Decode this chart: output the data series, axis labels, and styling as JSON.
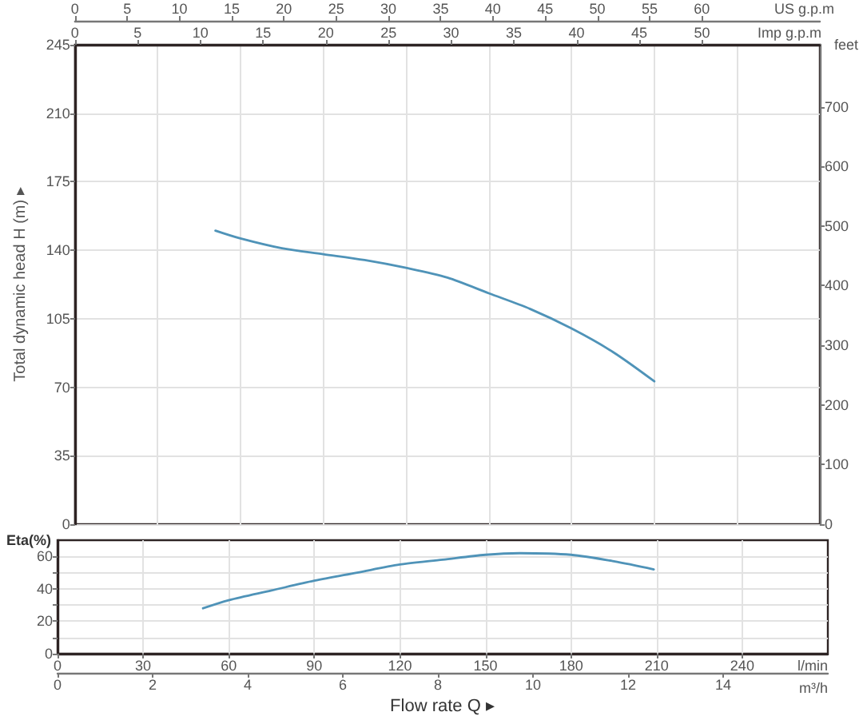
{
  "chart_data": [
    {
      "type": "line",
      "x": [
        11.2,
        13.2,
        16.5,
        19.8,
        23.1,
        26.4,
        29.7,
        33.0,
        36.3,
        39.6,
        42.9,
        46.2
      ],
      "values": [
        150,
        146,
        141,
        138,
        135,
        131,
        126,
        118,
        110,
        100,
        88,
        73
      ],
      "color": "#4f93b8",
      "xlim": [
        0,
        59.4
      ],
      "xticks": [
        0,
        5,
        10,
        15,
        20,
        25,
        30,
        35,
        40,
        45,
        50
      ],
      "xlabel": "Imp g.p.m",
      "x2lim": [
        0,
        71.3
      ],
      "x2ticks": [
        0,
        5,
        10,
        15,
        20,
        25,
        30,
        35,
        40,
        45,
        50,
        55,
        60
      ],
      "x2label": "US g.p.m",
      "ylim": [
        0,
        245
      ],
      "yticks": [
        0,
        35,
        70,
        105,
        140,
        175,
        210,
        245
      ],
      "ylabel": "Total dynamic head H (m) ▸",
      "y2lim": [
        0,
        804
      ],
      "y2ticks": [
        0,
        100,
        200,
        300,
        400,
        500,
        600,
        700
      ],
      "y2label": "feet",
      "grid": true,
      "marker": "none",
      "line_style": "solid"
    },
    {
      "type": "line",
      "x": [
        51,
        60,
        75,
        90,
        105,
        120,
        135,
        150,
        162,
        180,
        195,
        209
      ],
      "values": [
        28,
        33,
        39,
        45,
        50,
        55,
        58,
        61,
        62,
        61,
        57,
        52
      ],
      "color": "#4f93b8",
      "xlim": [
        0,
        270
      ],
      "xticks": [
        0,
        30,
        60,
        90,
        120,
        150,
        180,
        210,
        240
      ],
      "xlabel": "l/min",
      "x2lim": [
        0,
        16.2
      ],
      "x2ticks": [
        0,
        2,
        4,
        6,
        8,
        10,
        12,
        14
      ],
      "x2label": "m³/h",
      "ylim": [
        0,
        70
      ],
      "yticks": [
        0,
        {
          "value": 10,
          "label": null
        },
        20,
        {
          "value": 30,
          "label": null
        },
        40,
        {
          "value": 50,
          "label": null
        },
        60
      ],
      "ylabel": "Eta(%)",
      "annotations": [
        "Flow rate Q ▸"
      ],
      "grid": true,
      "marker": "none",
      "line_style": "solid"
    }
  ]
}
